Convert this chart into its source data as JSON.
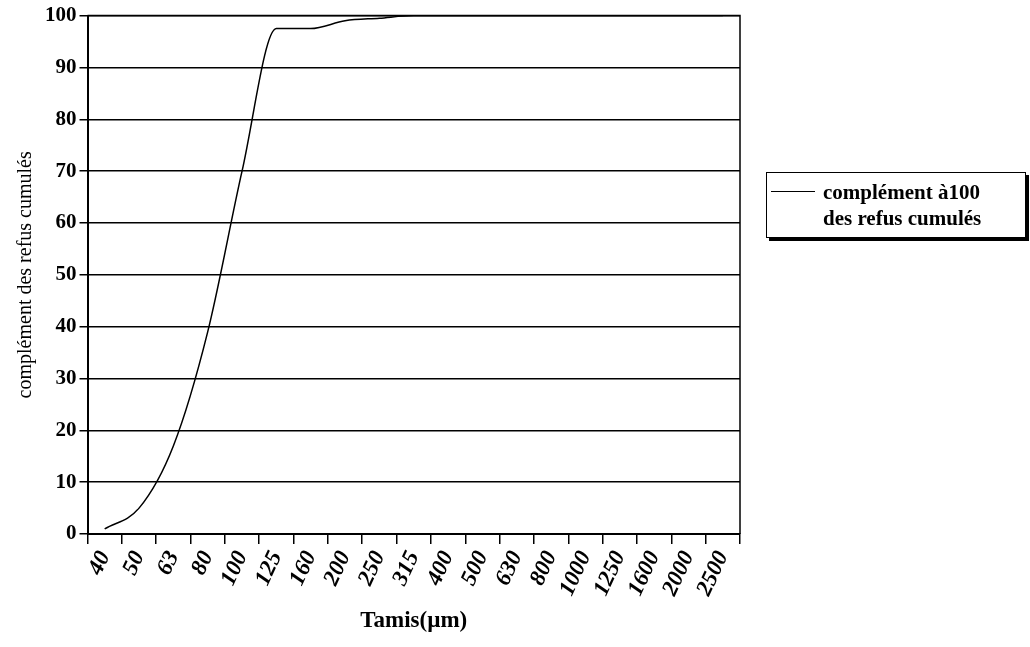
{
  "chart_data": {
    "type": "line",
    "xlabel": "Tamis(µm)",
    "ylabel": "complément des refus cumulés",
    "categories": [
      "40",
      "50",
      "63",
      "80",
      "100",
      "125",
      "160",
      "200",
      "250",
      "315",
      "400",
      "500",
      "630",
      "800",
      "1000",
      "1250",
      "1600",
      "2000",
      "2500"
    ],
    "series": [
      {
        "name": "complément à100 des refus cumulés",
        "color": "#000000",
        "values": [
          1,
          5,
          17,
          39,
          70,
          97.5,
          97.5,
          99,
          99.5,
          100,
          100,
          100,
          100,
          100,
          100,
          100,
          100,
          100,
          100
        ]
      }
    ],
    "ylim": [
      0,
      100
    ],
    "yticks": [
      0,
      10,
      20,
      30,
      40,
      50,
      60,
      70,
      80,
      90,
      100
    ],
    "grid": "y",
    "legend": "right",
    "marker": "none",
    "line_style": "solid"
  }
}
